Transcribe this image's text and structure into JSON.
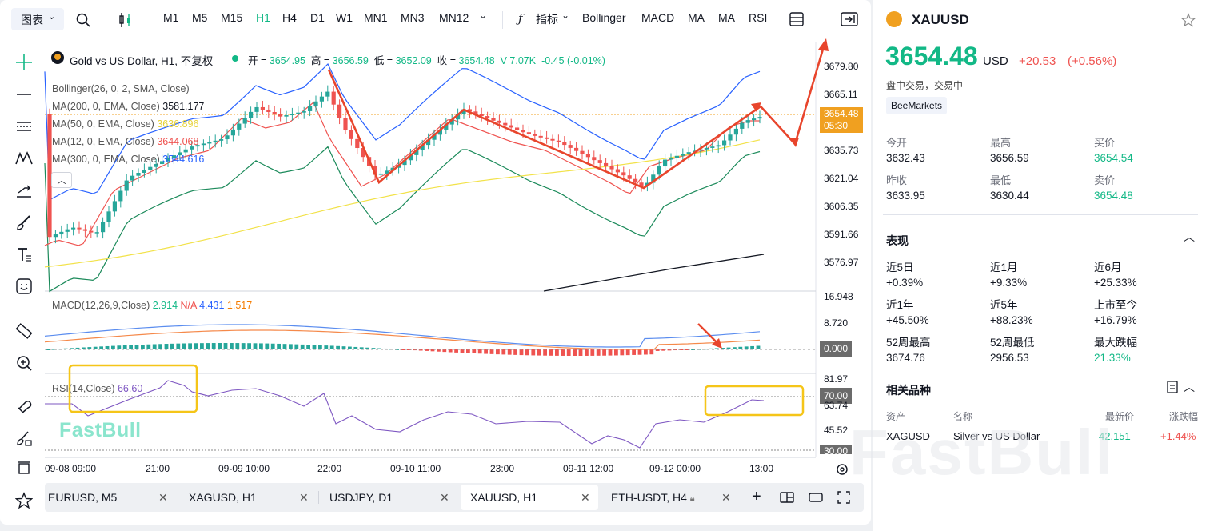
{
  "toolbar": {
    "chart_type_label": "图表",
    "timeframes": [
      "M1",
      "M5",
      "M15",
      "H1",
      "H4",
      "D1",
      "W1",
      "MN1",
      "MN3",
      "MN12"
    ],
    "active_timeframe": "H1",
    "indicators_label": "指标",
    "indicator_buttons": [
      "Bollinger",
      "MACD",
      "MA",
      "MA",
      "RSI"
    ]
  },
  "legend": {
    "symbol_title": "Gold vs US Dollar, H1, 不复权",
    "open_label": "开 =",
    "open": "3654.95",
    "high_label": "高 =",
    "high": "3656.59",
    "low_label": "低 =",
    "low": "3652.09",
    "close_label": "收 =",
    "close": "3654.48",
    "volume": "V 7.07K",
    "change": "-0.45 (-0.01%)"
  },
  "indicators": {
    "bollinger": "Bollinger(26, 0, 2, SMA, Close)",
    "ma200_label": "MA(200, 0, EMA, Close)",
    "ma200_value": "3581.177",
    "ma50_label": "MA(50, 0, EMA, Close)",
    "ma50_value": "3636.896",
    "ma12_label": "MA(12, 0, EMA, Close)",
    "ma12_value": "3644.068",
    "ma300_label": "MA(300, 0, EMA, Close)",
    "ma300_value": "3544.616",
    "macd_label": "MACD(12,26,9,Close)",
    "macd_v1": "2.914",
    "macd_v2": "N/A",
    "macd_v3": "4.431",
    "macd_v4": "1.517",
    "rsi_label": "RSI(14,Close)",
    "rsi_value": "66.60"
  },
  "price_axis": [
    "3679.80",
    "3665.11",
    "3635.73",
    "3621.04",
    "3606.35",
    "3591.66",
    "3576.97"
  ],
  "current_price_tag": {
    "price": "3654.48",
    "countdown": "05:30"
  },
  "macd_axis": [
    "16.948",
    "8.720"
  ],
  "macd_tag": "0.000",
  "rsi_axis": [
    "81.97",
    "45.52"
  ],
  "rsi_tags": {
    "upper": "70.00",
    "partial": "63.74",
    "lower": "30.00"
  },
  "time_axis": [
    "09-08 09:00",
    "21:00",
    "09-09 10:00",
    "22:00",
    "09-10 11:00",
    "23:00",
    "09-11 12:00",
    "09-12 00:00",
    "13:00"
  ],
  "watermark": "FastBull",
  "bottom_tabs": [
    {
      "label": "EURUSD, M5",
      "active": false
    },
    {
      "label": "XAGUSD, H1",
      "active": false
    },
    {
      "label": "USDJPY, D1",
      "active": false
    },
    {
      "label": "XAUUSD, H1",
      "active": true
    },
    {
      "label": "ETH-USDT, H4",
      "active": false
    }
  ],
  "info": {
    "symbol": "XAUUSD",
    "price": "3654.48",
    "currency": "USD",
    "change": "+20.53",
    "change_pct": "(+0.56%)",
    "session_status": "盘中交易，交易中",
    "provider": "BeeMarkets",
    "quote": [
      {
        "label": "今开",
        "value": "3632.43",
        "color": "#131722"
      },
      {
        "label": "最高",
        "value": "3656.59",
        "color": "#131722"
      },
      {
        "label": "买价",
        "value": "3654.54",
        "color": "#12b886"
      },
      {
        "label": "昨收",
        "value": "3633.95",
        "color": "#131722"
      },
      {
        "label": "最低",
        "value": "3630.44",
        "color": "#131722"
      },
      {
        "label": "卖价",
        "value": "3654.48",
        "color": "#12b886"
      }
    ],
    "performance_title": "表现",
    "performance": [
      {
        "label": "近5日",
        "value": "+0.39%",
        "color": "#131722"
      },
      {
        "label": "近1月",
        "value": "+9.33%",
        "color": "#131722"
      },
      {
        "label": "近6月",
        "value": "+25.33%",
        "color": "#131722"
      },
      {
        "label": "近1年",
        "value": "+45.50%",
        "color": "#131722"
      },
      {
        "label": "近5年",
        "value": "+88.23%",
        "color": "#131722"
      },
      {
        "label": "上市至今",
        "value": "+16.79%",
        "color": "#131722"
      },
      {
        "label": "52周最高",
        "value": "3674.76",
        "color": "#131722"
      },
      {
        "label": "52周最低",
        "value": "2956.53",
        "color": "#131722"
      },
      {
        "label": "最大跌幅",
        "value": "21.33%",
        "color": "#12b886"
      }
    ],
    "related_title": "相关品种",
    "related_headers": [
      "资产",
      "名称",
      "最新价",
      "涨跌幅"
    ],
    "related_rows": [
      {
        "asset": "XAGUSD",
        "name": "Silver vs US Dollar",
        "price": "42.151",
        "change": "+1.44%"
      }
    ]
  },
  "colors": {
    "up": "#26a69a",
    "down": "#ef5350",
    "accent_green": "#12b886",
    "price_tag": "#f0a020",
    "annotation": "#e8452c",
    "highlight_box": "#f5c518"
  }
}
